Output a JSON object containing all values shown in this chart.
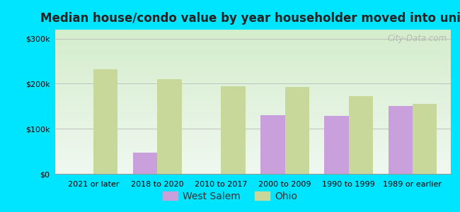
{
  "title": "Median house/condo value by year householder moved into unit",
  "categories": [
    "2021 or later",
    "2018 to 2020",
    "2010 to 2017",
    "2000 to 2009",
    "1990 to 1999",
    "1989 or earlier"
  ],
  "west_salem": [
    null,
    47000,
    null,
    130000,
    128000,
    150000
  ],
  "ohio": [
    232000,
    210000,
    195000,
    193000,
    172000,
    155000
  ],
  "west_salem_color": "#c9a0dc",
  "ohio_color": "#c8d89a",
  "background_outer": "#00e5ff",
  "background_inner_top": "#f0f8f0",
  "background_inner_bottom": "#d4edcc",
  "yticks": [
    0,
    100000,
    200000,
    300000
  ],
  "ylim": [
    0,
    320000
  ],
  "watermark": "City-Data.com",
  "legend_west_salem": "West Salem",
  "legend_ohio": "Ohio",
  "bar_width": 0.38,
  "title_fontsize": 12,
  "tick_fontsize": 8,
  "legend_fontsize": 10
}
